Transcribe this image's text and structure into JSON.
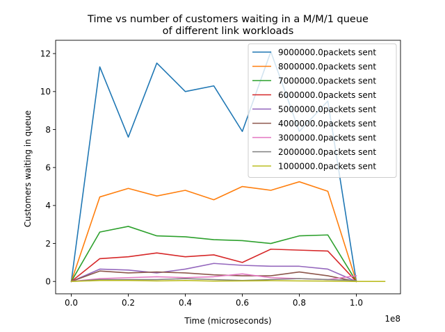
{
  "chart_data": {
    "type": "line",
    "title_line1": "Time vs number of customers waiting in a M/M/1 queue",
    "title_line2": "of different link workloads",
    "xlabel": "Time (microseconds)",
    "ylabel": "Customers waiting in queue",
    "x_offset_text": "1e8",
    "xlim": [
      -5.5,
      115.5
    ],
    "ylim": [
      -0.65,
      12.7
    ],
    "x_scale_label": "x values in units of 1e6 microseconds (tick label shows value/100 with 1e8 offset)",
    "x_ticks": [
      0,
      20,
      40,
      60,
      80,
      100
    ],
    "x_tick_labels": [
      "0.0",
      "0.2",
      "0.4",
      "0.6",
      "0.8",
      "1.0"
    ],
    "y_ticks": [
      0,
      2,
      4,
      6,
      8,
      10,
      12
    ],
    "y_tick_labels": [
      "0",
      "2",
      "4",
      "6",
      "8",
      "10",
      "12"
    ],
    "grid": false,
    "legend_position": "top-right",
    "series": [
      {
        "name": "9000000.0packets sent",
        "color": "#1f77b4",
        "x": [
          0,
          10,
          20,
          30,
          40,
          50,
          60,
          70,
          80,
          90,
          100
        ],
        "y": [
          0.0,
          11.3,
          7.6,
          11.5,
          10.0,
          10.3,
          7.9,
          12.1,
          7.9,
          9.5,
          0.0
        ]
      },
      {
        "name": "8000000.0packets sent",
        "color": "#ff7f0e",
        "x": [
          0,
          10,
          20,
          30,
          40,
          50,
          60,
          70,
          80,
          90,
          100
        ],
        "y": [
          0.0,
          4.45,
          4.9,
          4.5,
          4.8,
          4.3,
          5.0,
          4.8,
          5.25,
          4.75,
          0.0
        ]
      },
      {
        "name": "7000000.0packets sent",
        "color": "#2ca02c",
        "x": [
          0,
          10,
          20,
          30,
          40,
          50,
          60,
          70,
          80,
          90,
          100
        ],
        "y": [
          0.0,
          2.6,
          2.9,
          2.4,
          2.35,
          2.2,
          2.15,
          2.0,
          2.4,
          2.45,
          0.0
        ]
      },
      {
        "name": "6000000.0packets sent",
        "color": "#d62728",
        "x": [
          0,
          10,
          20,
          30,
          40,
          50,
          60,
          70,
          80,
          90,
          100
        ],
        "y": [
          0.0,
          1.2,
          1.3,
          1.5,
          1.3,
          1.4,
          1.0,
          1.7,
          1.65,
          1.6,
          0.0
        ]
      },
      {
        "name": "5000000.0packets sent",
        "color": "#9467bd",
        "x": [
          0,
          10,
          20,
          30,
          40,
          50,
          60,
          70,
          80,
          90,
          100
        ],
        "y": [
          0.0,
          0.65,
          0.6,
          0.45,
          0.65,
          0.95,
          0.85,
          0.8,
          0.8,
          0.65,
          0.0
        ]
      },
      {
        "name": "4000000.0packets sent",
        "color": "#8c564b",
        "x": [
          0,
          10,
          20,
          30,
          40,
          50,
          60,
          70,
          80,
          90,
          100
        ],
        "y": [
          0.0,
          0.55,
          0.45,
          0.5,
          0.45,
          0.35,
          0.3,
          0.3,
          0.5,
          0.3,
          0.0
        ]
      },
      {
        "name": "3000000.0packets sent",
        "color": "#e377c2",
        "x": [
          0,
          10,
          20,
          30,
          40,
          50,
          60,
          70,
          80,
          90,
          100
        ],
        "y": [
          0.0,
          0.15,
          0.2,
          0.25,
          0.2,
          0.25,
          0.4,
          0.2,
          0.15,
          0.1,
          0.3
        ]
      },
      {
        "name": "2000000.0packets sent",
        "color": "#7f7f7f",
        "x": [
          0,
          10,
          20,
          30,
          40,
          50,
          60,
          70,
          80,
          90,
          100
        ],
        "y": [
          0.0,
          0.1,
          0.1,
          0.1,
          0.15,
          0.1,
          0.05,
          0.1,
          0.15,
          0.1,
          0.05
        ]
      },
      {
        "name": "1000000.0packets sent",
        "color": "#bcbd22",
        "x": [
          0,
          10,
          20,
          30,
          40,
          50,
          60,
          70,
          80,
          90,
          100,
          110
        ],
        "y": [
          0.0,
          0.05,
          0.05,
          0.03,
          0.05,
          0.02,
          0.03,
          0.04,
          0.03,
          0.02,
          0.0,
          0.0
        ]
      }
    ]
  }
}
